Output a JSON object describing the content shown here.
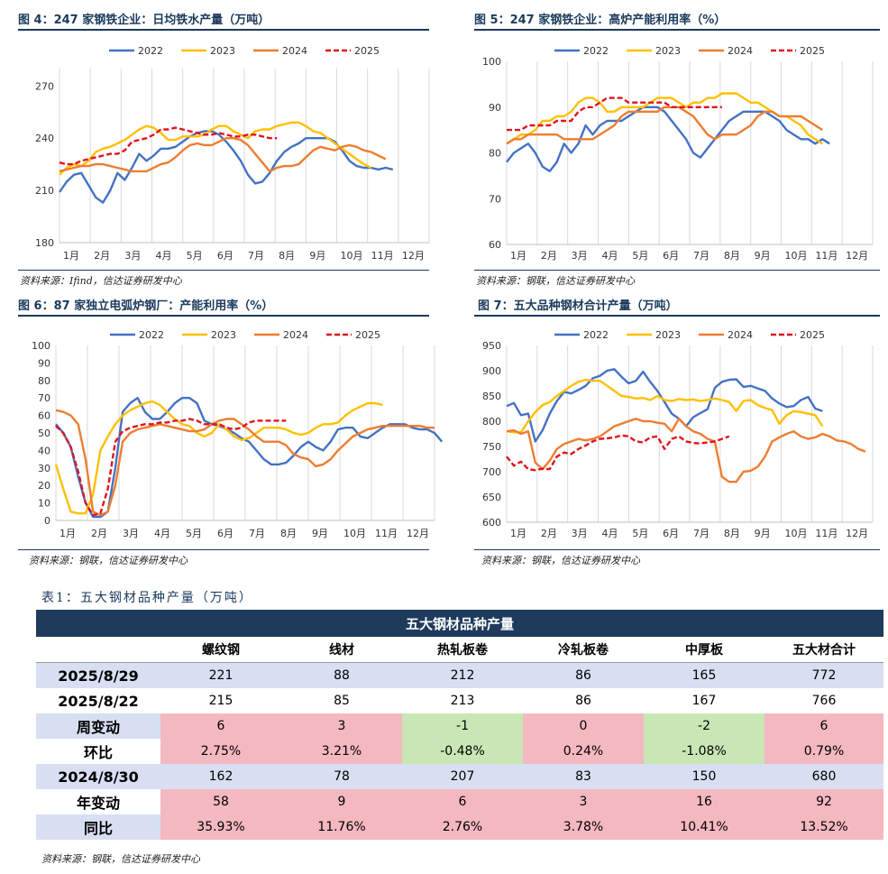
{
  "months": [
    "1月",
    "2月",
    "3月",
    "4月",
    "5月",
    "6月",
    "7月",
    "8月",
    "9月",
    "10月",
    "11月",
    "12月"
  ],
  "colors": {
    "2022": "#4472c4",
    "2023": "#ffc000",
    "2024": "#ed7d31",
    "2025": "#e0141e",
    "title": "#1a3a5c",
    "banner": "#1f3b5c"
  },
  "sources": {
    "fig4": "资料来源：Ifind，信达证券研发中心",
    "fig5": "资料来源：钢联，信达证券研发中心",
    "fig6": "资料来源：钢联，信达证券研发中心",
    "fig7": "资料来源：钢联，信达证券研发中心",
    "table": "资料来源：钢联，信达证券研发中心"
  },
  "chart_data": [
    {
      "id": "fig4",
      "type": "line",
      "title": "图 4：247 家钢铁企业：日均铁水产量（万吨）",
      "ylim": [
        180,
        280
      ],
      "yticks": [
        180,
        210,
        240,
        270
      ],
      "legend": "top",
      "series": [
        {
          "name": "2022",
          "values": [
            209,
            215,
            219,
            220,
            213,
            206,
            203,
            210,
            220,
            216,
            223,
            231,
            227,
            230,
            234,
            234,
            235,
            238,
            241,
            243,
            244,
            244,
            242,
            238,
            233,
            227,
            219,
            214,
            215,
            220,
            227,
            232,
            235,
            237,
            240,
            240,
            240,
            240,
            238,
            233,
            227,
            224,
            223,
            223,
            222,
            223,
            222
          ]
        },
        {
          "name": "2023",
          "values": [
            219,
            223,
            225,
            224,
            227,
            232,
            234,
            235,
            237,
            239,
            242,
            245,
            247,
            246,
            243,
            239,
            239,
            241,
            241,
            241,
            242,
            245,
            247,
            247,
            244,
            242,
            240,
            244,
            245,
            245,
            247,
            248,
            249,
            249,
            247,
            244,
            243,
            240,
            237,
            234,
            231,
            228,
            225,
            223
          ]
        },
        {
          "name": "2024",
          "values": [
            221,
            222,
            223,
            224,
            224,
            225,
            225,
            224,
            223,
            222,
            221,
            221,
            221,
            223,
            225,
            226,
            229,
            233,
            236,
            237,
            236,
            236,
            238,
            240,
            240,
            239,
            236,
            231,
            226,
            221,
            223,
            224,
            224,
            225,
            229,
            233,
            235,
            234,
            233,
            235,
            236,
            235,
            233,
            232,
            230,
            228
          ]
        },
        {
          "name": "2025",
          "values": [
            226,
            225,
            225,
            227,
            228,
            229,
            230,
            231,
            231,
            233,
            238,
            239,
            240,
            242,
            245,
            245,
            246,
            245,
            244,
            243,
            242,
            242,
            243,
            242,
            241,
            241,
            242,
            242,
            241,
            240,
            240
          ]
        }
      ]
    },
    {
      "id": "fig5",
      "type": "line",
      "title": "图 5：247 家钢铁企业：高炉产能利用率（%）",
      "ylim": [
        60,
        100
      ],
      "yticks": [
        60,
        70,
        80,
        90,
        100
      ],
      "legend": "top",
      "series": [
        {
          "name": "2022",
          "values": [
            78,
            80,
            81,
            82,
            80,
            77,
            76,
            78,
            82,
            80,
            82,
            86,
            84,
            86,
            87,
            87,
            87,
            88,
            89,
            90,
            90,
            90,
            89,
            87,
            85,
            83,
            80,
            79,
            81,
            83,
            85,
            87,
            88,
            89,
            89,
            89,
            89,
            88,
            87,
            85,
            84,
            83,
            83,
            82,
            83,
            82
          ]
        },
        {
          "name": "2023",
          "values": [
            82,
            83,
            84,
            84,
            85,
            87,
            87,
            88,
            88,
            89,
            91,
            92,
            92,
            91,
            89,
            89,
            90,
            90,
            90,
            90,
            91,
            92,
            92,
            92,
            91,
            90,
            91,
            91,
            92,
            92,
            93,
            93,
            93,
            92,
            91,
            91,
            90,
            89,
            88,
            88,
            87,
            86,
            84,
            83,
            82
          ]
        },
        {
          "name": "2024",
          "values": [
            82,
            83,
            83,
            84,
            84,
            84,
            84,
            84,
            83,
            83,
            83,
            83,
            83,
            84,
            85,
            86,
            88,
            89,
            89,
            89,
            89,
            89,
            90,
            90,
            90,
            89,
            88,
            86,
            84,
            83,
            84,
            84,
            84,
            85,
            86,
            88,
            89,
            89,
            88,
            88,
            88,
            88,
            87,
            86,
            85
          ]
        },
        {
          "name": "2025",
          "values": [
            85,
            85,
            85,
            86,
            86,
            86,
            86,
            87,
            87,
            87,
            89,
            90,
            90,
            91,
            92,
            92,
            92,
            91,
            91,
            91,
            91,
            91,
            91,
            90,
            90,
            90,
            90,
            90,
            90,
            90,
            90
          ]
        }
      ]
    },
    {
      "id": "fig6",
      "type": "line",
      "title": "图 6：87 家独立电弧炉钢厂：产能利用率（%）",
      "ylim": [
        0,
        100
      ],
      "yticks": [
        0,
        10,
        20,
        30,
        40,
        50,
        60,
        70,
        80,
        90,
        100
      ],
      "legend": "top",
      "series": [
        {
          "name": "2022",
          "values": [
            55,
            50,
            42,
            25,
            10,
            2,
            2,
            5,
            30,
            62,
            67,
            70,
            62,
            58,
            58,
            62,
            67,
            70,
            70,
            67,
            57,
            55,
            54,
            52,
            50,
            47,
            45,
            40,
            35,
            32,
            32,
            33,
            37,
            42,
            45,
            42,
            40,
            45,
            52,
            53,
            53,
            48,
            47,
            50,
            53,
            55,
            55,
            55,
            53,
            52,
            52,
            50,
            45
          ]
        },
        {
          "name": "2023",
          "values": [
            32,
            18,
            5,
            4,
            4,
            15,
            40,
            48,
            55,
            60,
            63,
            65,
            67,
            68,
            66,
            62,
            58,
            55,
            54,
            50,
            48,
            50,
            55,
            52,
            48,
            46,
            47,
            50,
            53,
            53,
            53,
            52,
            50,
            49,
            50,
            53,
            55,
            55,
            56,
            60,
            63,
            65,
            67,
            67,
            66
          ]
        },
        {
          "name": "2024",
          "values": [
            63,
            62,
            60,
            55,
            35,
            5,
            3,
            5,
            20,
            45,
            50,
            52,
            53,
            54,
            55,
            54,
            53,
            52,
            51,
            51,
            52,
            55,
            57,
            58,
            58,
            55,
            52,
            48,
            45,
            45,
            45,
            43,
            38,
            36,
            35,
            31,
            32,
            35,
            40,
            44,
            48,
            50,
            52,
            53,
            54,
            54,
            54,
            54,
            54,
            54,
            53,
            53
          ]
        },
        {
          "name": "2025",
          "values": [
            54,
            50,
            42,
            28,
            10,
            3,
            4,
            18,
            45,
            51,
            53,
            54,
            55,
            55,
            56,
            56,
            57,
            57,
            58,
            57,
            55,
            55,
            55,
            53,
            52,
            53,
            56,
            57,
            57,
            57,
            57,
            57
          ]
        }
      ]
    },
    {
      "id": "fig7",
      "type": "line",
      "title": "图 7：五大品种钢材合计产量（万吨）",
      "ylim": [
        600,
        950
      ],
      "yticks": [
        600,
        650,
        700,
        750,
        800,
        850,
        900,
        950
      ],
      "legend": "top",
      "series": [
        {
          "name": "2022",
          "values": [
            830,
            836,
            812,
            815,
            760,
            782,
            815,
            840,
            858,
            855,
            862,
            870,
            885,
            890,
            900,
            903,
            888,
            875,
            880,
            898,
            878,
            860,
            838,
            815,
            805,
            790,
            808,
            816,
            824,
            866,
            878,
            882,
            883,
            868,
            870,
            865,
            860,
            845,
            835,
            828,
            830,
            842,
            848,
            825,
            820
          ]
        },
        {
          "name": "2023",
          "values": [
            780,
            778,
            778,
            800,
            818,
            832,
            838,
            850,
            860,
            870,
            878,
            882,
            880,
            880,
            870,
            860,
            850,
            848,
            845,
            846,
            842,
            850,
            842,
            840,
            844,
            842,
            843,
            840,
            842,
            845,
            842,
            838,
            820,
            840,
            842,
            832,
            826,
            822,
            795,
            812,
            820,
            818,
            815,
            812,
            790
          ]
        },
        {
          "name": "2024",
          "values": [
            780,
            782,
            775,
            780,
            718,
            705,
            722,
            745,
            755,
            760,
            765,
            762,
            765,
            770,
            780,
            790,
            795,
            800,
            805,
            800,
            800,
            797,
            795,
            780,
            805,
            790,
            780,
            775,
            765,
            760,
            690,
            680,
            680,
            700,
            702,
            710,
            730,
            760,
            768,
            775,
            780,
            770,
            765,
            768,
            775,
            770,
            762,
            760,
            755,
            745,
            740
          ]
        },
        {
          "name": "2025",
          "values": [
            730,
            712,
            720,
            705,
            703,
            706,
            705,
            730,
            738,
            735,
            745,
            752,
            760,
            765,
            766,
            768,
            772,
            770,
            760,
            758,
            768,
            770,
            745,
            765,
            770,
            760,
            757,
            756,
            758,
            760,
            765,
            770
          ]
        }
      ]
    }
  ],
  "table": {
    "title": "表1：五大钢材品种产量（万吨）",
    "banner": "五大钢材品种产量",
    "headers": [
      "螺纹钢",
      "线材",
      "热轧板卷",
      "冷轧板卷",
      "中厚板",
      "五大材合计"
    ],
    "rows": [
      {
        "label": "2025/8/29",
        "values": [
          "221",
          "88",
          "212",
          "86",
          "165",
          "772"
        ],
        "bg": [
          "blue",
          "blue",
          "blue",
          "blue",
          "blue",
          "blue"
        ],
        "labelbg": "blue"
      },
      {
        "label": "2025/8/22",
        "values": [
          "215",
          "85",
          "213",
          "86",
          "167",
          "766"
        ],
        "bg": [
          "white",
          "white",
          "white",
          "white",
          "white",
          "white"
        ],
        "labelbg": "white"
      },
      {
        "label": "周变动",
        "values": [
          "6",
          "3",
          "-1",
          "0",
          "-2",
          "6"
        ],
        "bg": [
          "red",
          "red",
          "green",
          "red",
          "green",
          "red"
        ],
        "labelbg": "blue"
      },
      {
        "label": "环比",
        "values": [
          "2.75%",
          "3.21%",
          "-0.48%",
          "0.24%",
          "-1.08%",
          "0.79%"
        ],
        "bg": [
          "red",
          "red",
          "green",
          "red",
          "green",
          "red"
        ],
        "labelbg": "white"
      },
      {
        "label": "2024/8/30",
        "values": [
          "162",
          "78",
          "207",
          "83",
          "150",
          "680"
        ],
        "bg": [
          "blue",
          "blue",
          "blue",
          "blue",
          "blue",
          "blue"
        ],
        "labelbg": "blue"
      },
      {
        "label": "年变动",
        "values": [
          "58",
          "9",
          "6",
          "3",
          "16",
          "92"
        ],
        "bg": [
          "red",
          "red",
          "red",
          "red",
          "red",
          "red"
        ],
        "labelbg": "white"
      },
      {
        "label": "同比",
        "values": [
          "35.93%",
          "11.76%",
          "2.76%",
          "3.78%",
          "10.41%",
          "13.52%"
        ],
        "bg": [
          "red",
          "red",
          "red",
          "red",
          "red",
          "red"
        ],
        "labelbg": "blue"
      }
    ]
  }
}
